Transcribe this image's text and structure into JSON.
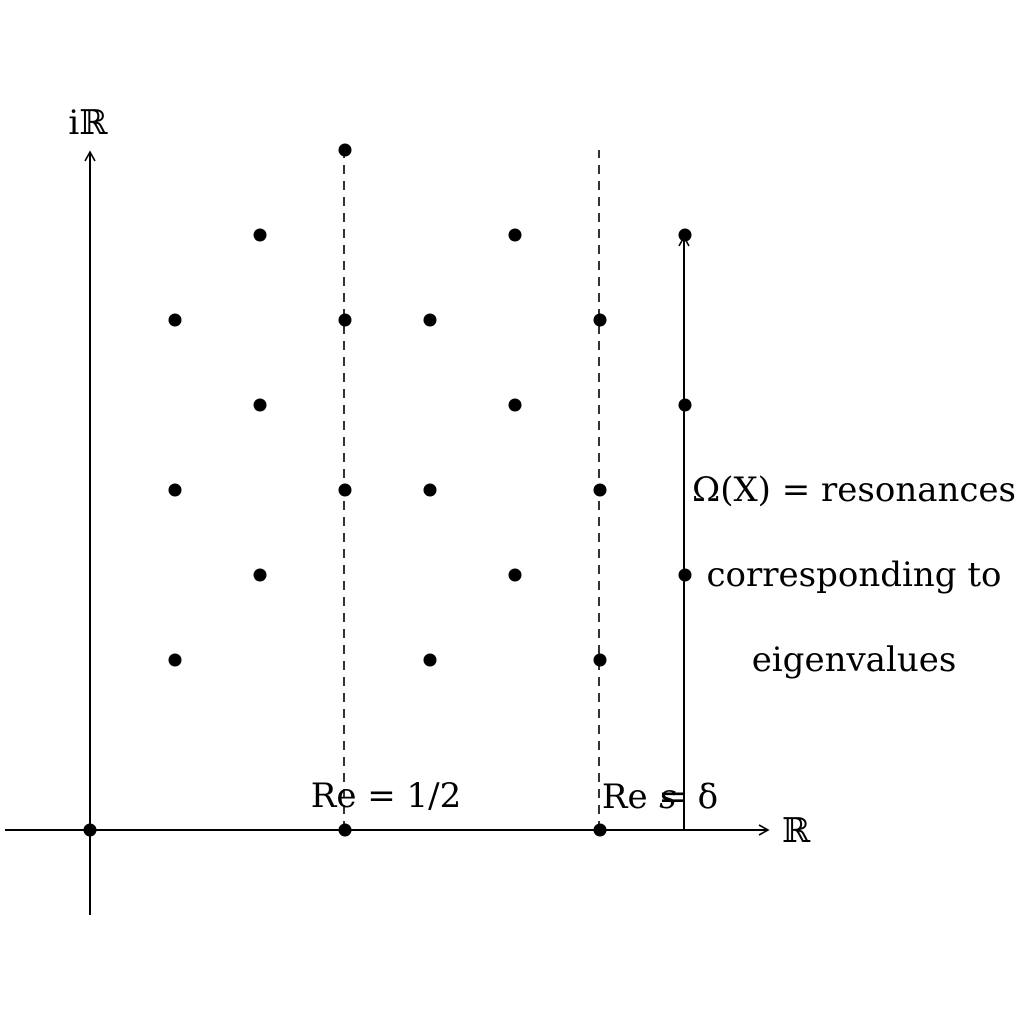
{
  "axes": {
    "imaginary_label": "iℝ",
    "real_label": "ℝ"
  },
  "lines": {
    "critical_line_label": "Re = 1/2",
    "delta_line_label": "Re = δ",
    "s_label": "s"
  },
  "annotation": {
    "line1": "Ω(X) = resonances",
    "line2": "corresponding to",
    "line3": "eigenvalues"
  },
  "colors": {
    "ink": "#000000",
    "background": "#ffffff"
  },
  "points": [
    {
      "re": 0,
      "im": 0
    },
    {
      "re": 3,
      "im": 0
    },
    {
      "re": 6,
      "im": 0
    },
    {
      "re": 1,
      "im": 2
    },
    {
      "re": 4,
      "im": 2
    },
    {
      "re": 6,
      "im": 2
    },
    {
      "re": 2,
      "im": 3
    },
    {
      "re": 5,
      "im": 3
    },
    {
      "re": 7,
      "im": 3
    },
    {
      "re": 1,
      "im": 4
    },
    {
      "re": 3,
      "im": 4
    },
    {
      "re": 4,
      "im": 4
    },
    {
      "re": 6,
      "im": 4
    },
    {
      "re": 2,
      "im": 5
    },
    {
      "re": 5,
      "im": 5
    },
    {
      "re": 7,
      "im": 5
    },
    {
      "re": 1,
      "im": 6
    },
    {
      "re": 3,
      "im": 6
    },
    {
      "re": 4,
      "im": 6
    },
    {
      "re": 6,
      "im": 6
    },
    {
      "re": 2,
      "im": 7
    },
    {
      "re": 5,
      "im": 7
    },
    {
      "re": 7,
      "im": 7
    },
    {
      "re": 3,
      "im": 8
    }
  ]
}
